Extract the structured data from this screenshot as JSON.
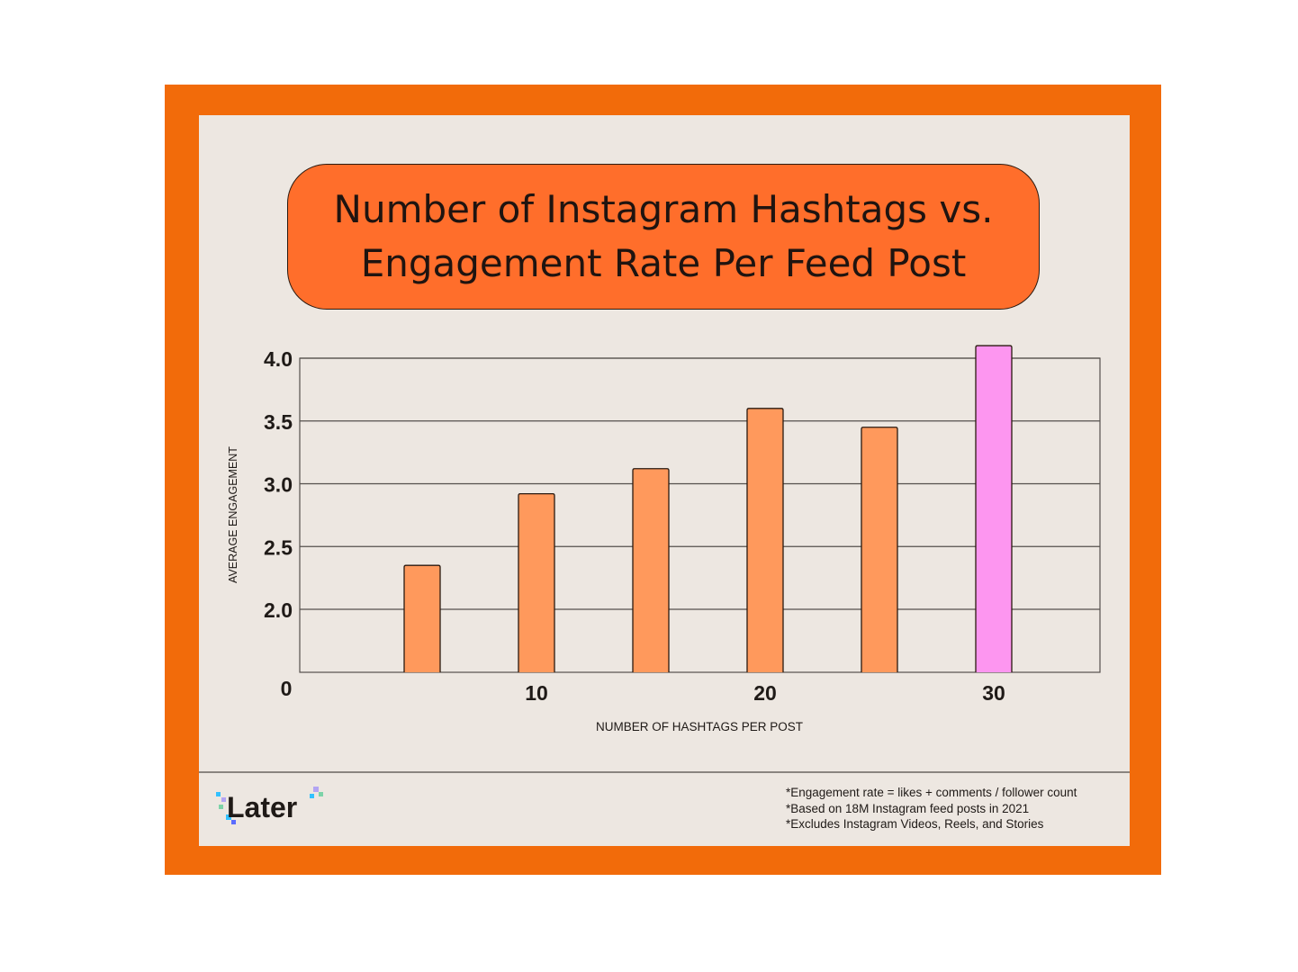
{
  "title_line1": "Number of Instagram Hashtags vs.",
  "title_line2": "Engagement Rate Per Feed Post",
  "colors": {
    "frame": "#f26b0a",
    "card": "#ede7e1",
    "title_fill": "#ff6e2b",
    "bar": "#ff995c",
    "bar_highlight": "#fd96f0",
    "grid": "#55504c"
  },
  "chart_data": {
    "type": "bar",
    "title": "Number of Instagram Hashtags vs. Engagement Rate Per Feed Post",
    "xlabel": "NUMBER OF HASHTAGS PER POST",
    "ylabel": "AVERAGE ENGAGEMENT",
    "x": [
      5,
      10,
      15,
      20,
      25,
      30
    ],
    "values": [
      2.35,
      2.92,
      3.12,
      3.6,
      3.45,
      4.1
    ],
    "highlight_index": 5,
    "x_ticks": [
      "0",
      "10",
      "20",
      "30"
    ],
    "y_ticks": [
      "0",
      "2.0",
      "2.5",
      "3.0",
      "3.5",
      "4.0"
    ],
    "y_axis_note": "axis break: 0 then 2.0 to 4.0",
    "grid": true
  },
  "footer": {
    "logo": "Later",
    "notes": [
      "*Engagement rate = likes + comments / follower count",
      "*Based on 18M Instagram feed posts in 2021",
      "*Excludes Instagram Videos, Reels, and Stories"
    ]
  }
}
